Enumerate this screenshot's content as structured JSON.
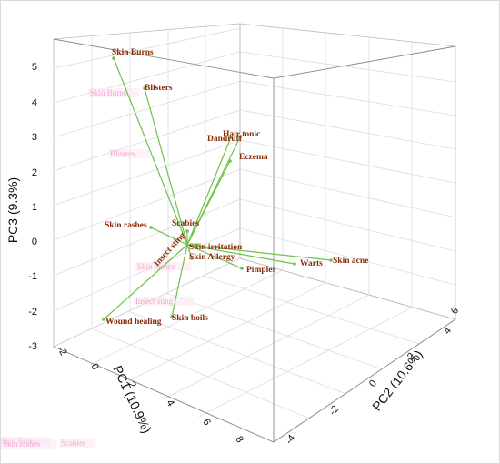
{
  "chart_data": {
    "type": "scatter",
    "title": "",
    "axes": {
      "x": {
        "label": "PC1 (10.9%)",
        "ticks": [
          "-2",
          "0",
          "2",
          "4",
          "6",
          "8"
        ]
      },
      "y": {
        "label": "PC2 (10.6%)",
        "ticks": [
          "-4",
          "-2",
          "0",
          "2",
          "4",
          "6"
        ]
      },
      "z": {
        "label": "PC3 (9.3%)",
        "ticks": [
          "-3",
          "-2",
          "-1",
          "0",
          "1",
          "2",
          "3",
          "4",
          "5"
        ]
      }
    },
    "grid": true,
    "line_color": "#6cc24a",
    "label_color": "#8a2b08",
    "ghost_color": "#f2a6cf",
    "origin": "Insect sting",
    "loadings": [
      {
        "name": "Skin Burns",
        "pc3": 5.2
      },
      {
        "name": "Blisters",
        "pc3": 4.3
      },
      {
        "name": "Hair tonic",
        "pc3": 3.0
      },
      {
        "name": "Dandruff",
        "pc3": 2.9
      },
      {
        "name": "Eczema",
        "pc3": 2.4
      },
      {
        "name": "Scabies",
        "pc3": 0.6
      },
      {
        "name": "Skin rashes",
        "pc3": 0.5
      },
      {
        "name": "Skin irritation",
        "pc3": 0.0
      },
      {
        "name": "Skin Allergy",
        "pc3": -0.3
      },
      {
        "name": "Warts",
        "pc3": -0.5
      },
      {
        "name": "Skin acne",
        "pc3": -0.4
      },
      {
        "name": "Pimples",
        "pc3": -0.6
      },
      {
        "name": "Wound healing",
        "pc3": -2.2
      },
      {
        "name": "Skin boils",
        "pc3": -2.1
      }
    ],
    "projections": [
      "Skin Burns",
      "Blisters",
      "Skin rashes",
      "Scabies",
      "Insect sting"
    ]
  }
}
